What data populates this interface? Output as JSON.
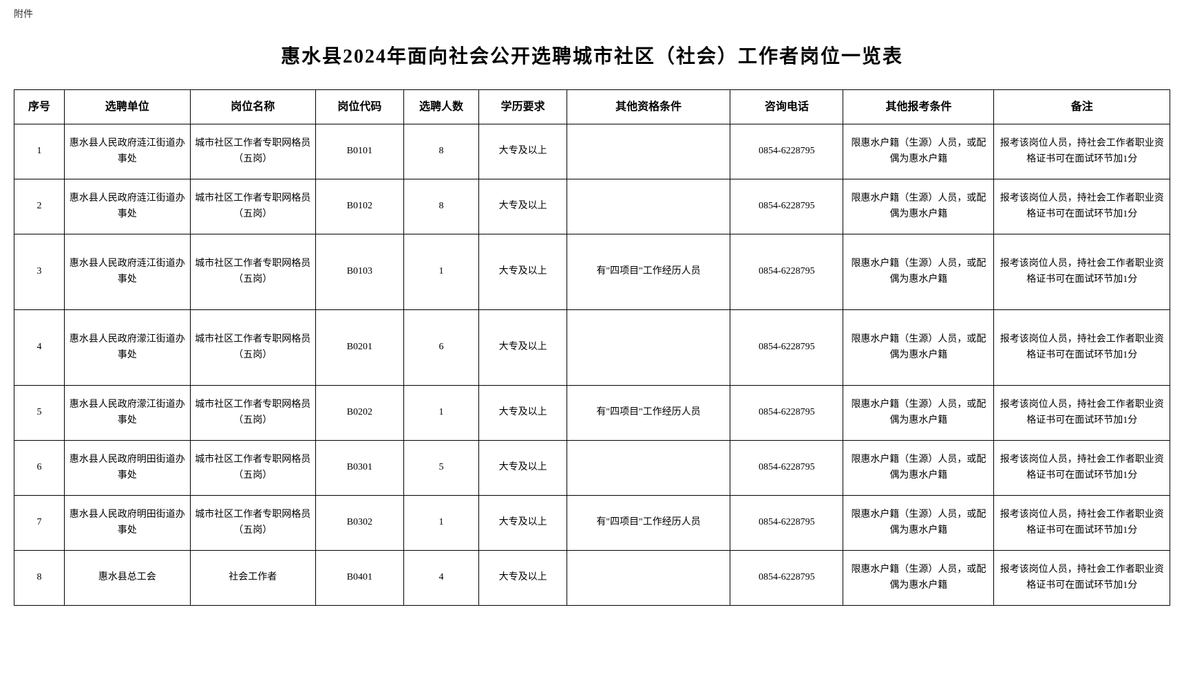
{
  "attachment_label": "附件",
  "title": "惠水县2024年面向社会公开选聘城市社区（社会）工作者岗位一览表",
  "table": {
    "columns": [
      "序号",
      "选聘单位",
      "岗位名称",
      "岗位代码",
      "选聘人数",
      "学历要求",
      "其他资格条件",
      "咨询电话",
      "其他报考条件",
      "备注"
    ],
    "column_widths_pct": [
      4,
      10,
      10,
      7,
      6,
      7,
      13,
      9,
      12,
      14
    ],
    "border_color": "#000000",
    "header_fontsize": 16,
    "cell_fontsize": 14,
    "rows": [
      {
        "seq": "1",
        "unit": "惠水县人民政府涟江街道办事处",
        "position": "城市社区工作者专职网格员（五岗）",
        "code": "B0101",
        "count": "8",
        "edu": "大专及以上",
        "qual": "",
        "phone": "0854-6228795",
        "other": "限惠水户籍（生源）人员，或配偶为惠水户籍",
        "remark": "报考该岗位人员，持社会工作者职业资格证书可在面试环节加1分",
        "tall": false
      },
      {
        "seq": "2",
        "unit": "惠水县人民政府涟江街道办事处",
        "position": "城市社区工作者专职网格员（五岗）",
        "code": "B0102",
        "count": "8",
        "edu": "大专及以上",
        "qual": "",
        "phone": "0854-6228795",
        "other": "限惠水户籍（生源）人员，或配偶为惠水户籍",
        "remark": "报考该岗位人员，持社会工作者职业资格证书可在面试环节加1分",
        "tall": false
      },
      {
        "seq": "3",
        "unit": "惠水县人民政府涟江街道办事处",
        "position": "城市社区工作者专职网格员（五岗）",
        "code": "B0103",
        "count": "1",
        "edu": "大专及以上",
        "qual": "有\"四项目\"工作经历人员",
        "phone": "0854-6228795",
        "other": "限惠水户籍（生源）人员，或配偶为惠水户籍",
        "remark": "报考该岗位人员，持社会工作者职业资格证书可在面试环节加1分",
        "tall": true
      },
      {
        "seq": "4",
        "unit": "惠水县人民政府濛江街道办事处",
        "position": "城市社区工作者专职网格员（五岗）",
        "code": "B0201",
        "count": "6",
        "edu": "大专及以上",
        "qual": "",
        "phone": "0854-6228795",
        "other": "限惠水户籍（生源）人员，或配偶为惠水户籍",
        "remark": "报考该岗位人员，持社会工作者职业资格证书可在面试环节加1分",
        "tall": true
      },
      {
        "seq": "5",
        "unit": "惠水县人民政府濛江街道办事处",
        "position": "城市社区工作者专职网格员（五岗）",
        "code": "B0202",
        "count": "1",
        "edu": "大专及以上",
        "qual": "有\"四项目\"工作经历人员",
        "phone": "0854-6228795",
        "other": "限惠水户籍（生源）人员，或配偶为惠水户籍",
        "remark": "报考该岗位人员，持社会工作者职业资格证书可在面试环节加1分",
        "tall": false
      },
      {
        "seq": "6",
        "unit": "惠水县人民政府明田街道办事处",
        "position": "城市社区工作者专职网格员（五岗）",
        "code": "B0301",
        "count": "5",
        "edu": "大专及以上",
        "qual": "",
        "phone": "0854-6228795",
        "other": "限惠水户籍（生源）人员，或配偶为惠水户籍",
        "remark": "报考该岗位人员，持社会工作者职业资格证书可在面试环节加1分",
        "tall": false
      },
      {
        "seq": "7",
        "unit": "惠水县人民政府明田街道办事处",
        "position": "城市社区工作者专职网格员（五岗）",
        "code": "B0302",
        "count": "1",
        "edu": "大专及以上",
        "qual": "有\"四项目\"工作经历人员",
        "phone": "0854-6228795",
        "other": "限惠水户籍（生源）人员，或配偶为惠水户籍",
        "remark": "报考该岗位人员，持社会工作者职业资格证书可在面试环节加1分",
        "tall": false
      },
      {
        "seq": "8",
        "unit": "惠水县总工会",
        "position": "社会工作者",
        "code": "B0401",
        "count": "4",
        "edu": "大专及以上",
        "qual": "",
        "phone": "0854-6228795",
        "other": "限惠水户籍（生源）人员，或配偶为惠水户籍",
        "remark": "报考该岗位人员，持社会工作者职业资格证书可在面试环节加1分",
        "tall": false
      }
    ]
  }
}
